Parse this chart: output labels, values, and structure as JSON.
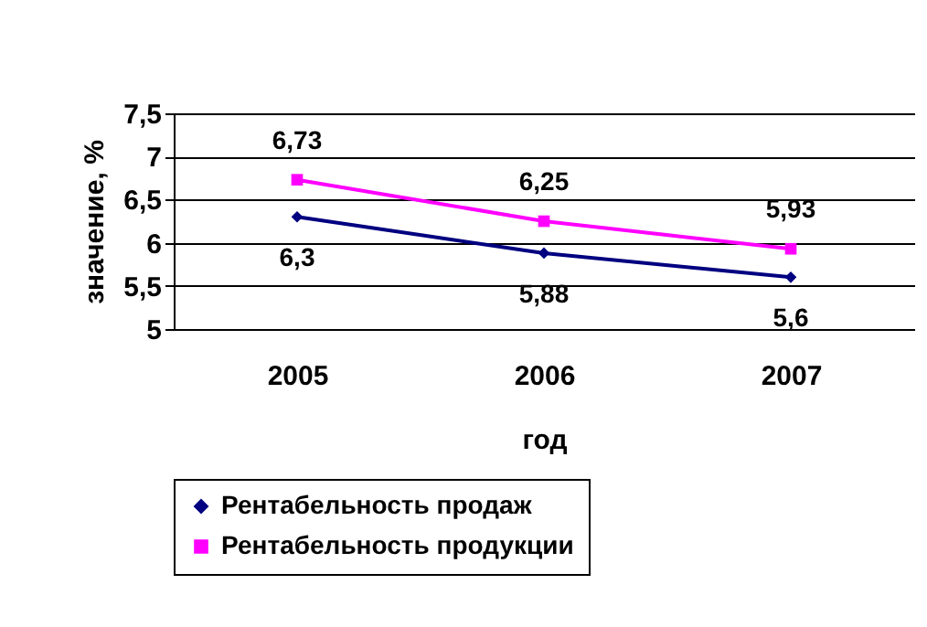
{
  "chart_data": {
    "type": "line",
    "xlabel": "год",
    "ylabel": "значение, %",
    "categories": [
      "2005",
      "2006",
      "2007"
    ],
    "series": [
      {
        "name": "Рентабельность продаж",
        "color": "#000080",
        "marker": "diamond",
        "values": [
          6.3,
          5.88,
          5.6
        ],
        "value_labels": [
          "6,3",
          "5,88",
          "5,6"
        ]
      },
      {
        "name": "Рентабельность продукции",
        "color": "#ff00ff",
        "marker": "square",
        "values": [
          6.73,
          6.25,
          5.93
        ],
        "value_labels": [
          "6,73",
          "6,25",
          "5,93"
        ]
      }
    ],
    "ylim": [
      5,
      7.5
    ],
    "yticks": [
      5,
      {
        "value": 5.5,
        "label": "5,5"
      },
      6,
      {
        "value": 6.5,
        "label": "6,5"
      },
      7,
      {
        "value": 7.5,
        "label": "7,5"
      }
    ],
    "grid": "y",
    "legend": "bottom"
  }
}
